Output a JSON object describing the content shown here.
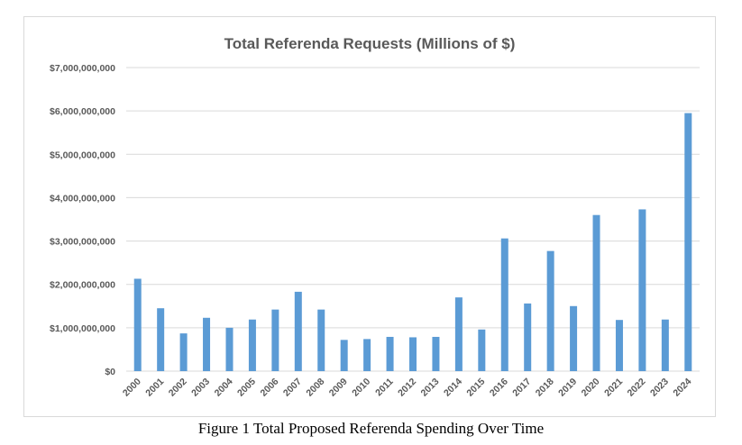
{
  "caption": "Figure 1 Total Proposed Referenda Spending Over Time",
  "chart_data": {
    "type": "bar",
    "title": "Total Referenda Requests (Millions of $)",
    "xlabel": "",
    "ylabel": "",
    "ylim": [
      0,
      7000000000
    ],
    "ytick_values": [
      0,
      1000000000,
      2000000000,
      3000000000,
      4000000000,
      5000000000,
      6000000000,
      7000000000
    ],
    "ytick_labels": [
      "$0",
      "$1,000,000,000",
      "$2,000,000,000",
      "$3,000,000,000",
      "$4,000,000,000",
      "$5,000,000,000",
      "$6,000,000,000",
      "$7,000,000,000"
    ],
    "grid": true,
    "legend": "none",
    "bar_color": "#5b9bd5",
    "grid_color": "#d9d9d9",
    "categories": [
      "2000",
      "2001",
      "2002",
      "2003",
      "2004",
      "2005",
      "2006",
      "2007",
      "2008",
      "2009",
      "2010",
      "2011",
      "2012",
      "2013",
      "2014",
      "2015",
      "2016",
      "2017",
      "2018",
      "2019",
      "2020",
      "2021",
      "2022",
      "2023",
      "2024"
    ],
    "values": [
      2130000000,
      1450000000,
      870000000,
      1230000000,
      1000000000,
      1190000000,
      1420000000,
      1830000000,
      1420000000,
      720000000,
      740000000,
      790000000,
      780000000,
      790000000,
      1700000000,
      960000000,
      3060000000,
      1560000000,
      2770000000,
      1500000000,
      3600000000,
      1180000000,
      3730000000,
      1190000000,
      5950000000
    ]
  }
}
